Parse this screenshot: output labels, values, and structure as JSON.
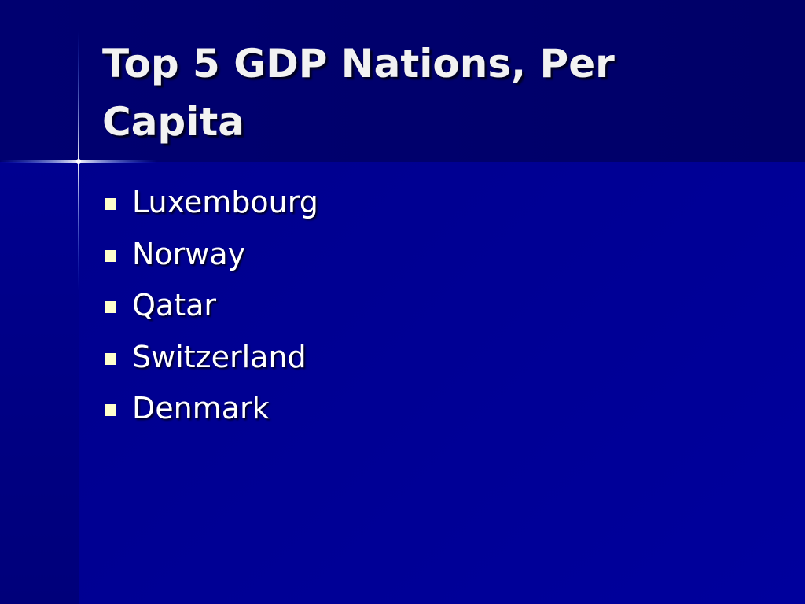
{
  "slide": {
    "title": "Top 5 GDP Nations, Per Capita",
    "bullets": [
      "Luxembourg",
      "Norway",
      "Qatar",
      "Switzerland",
      "Denmark"
    ]
  }
}
